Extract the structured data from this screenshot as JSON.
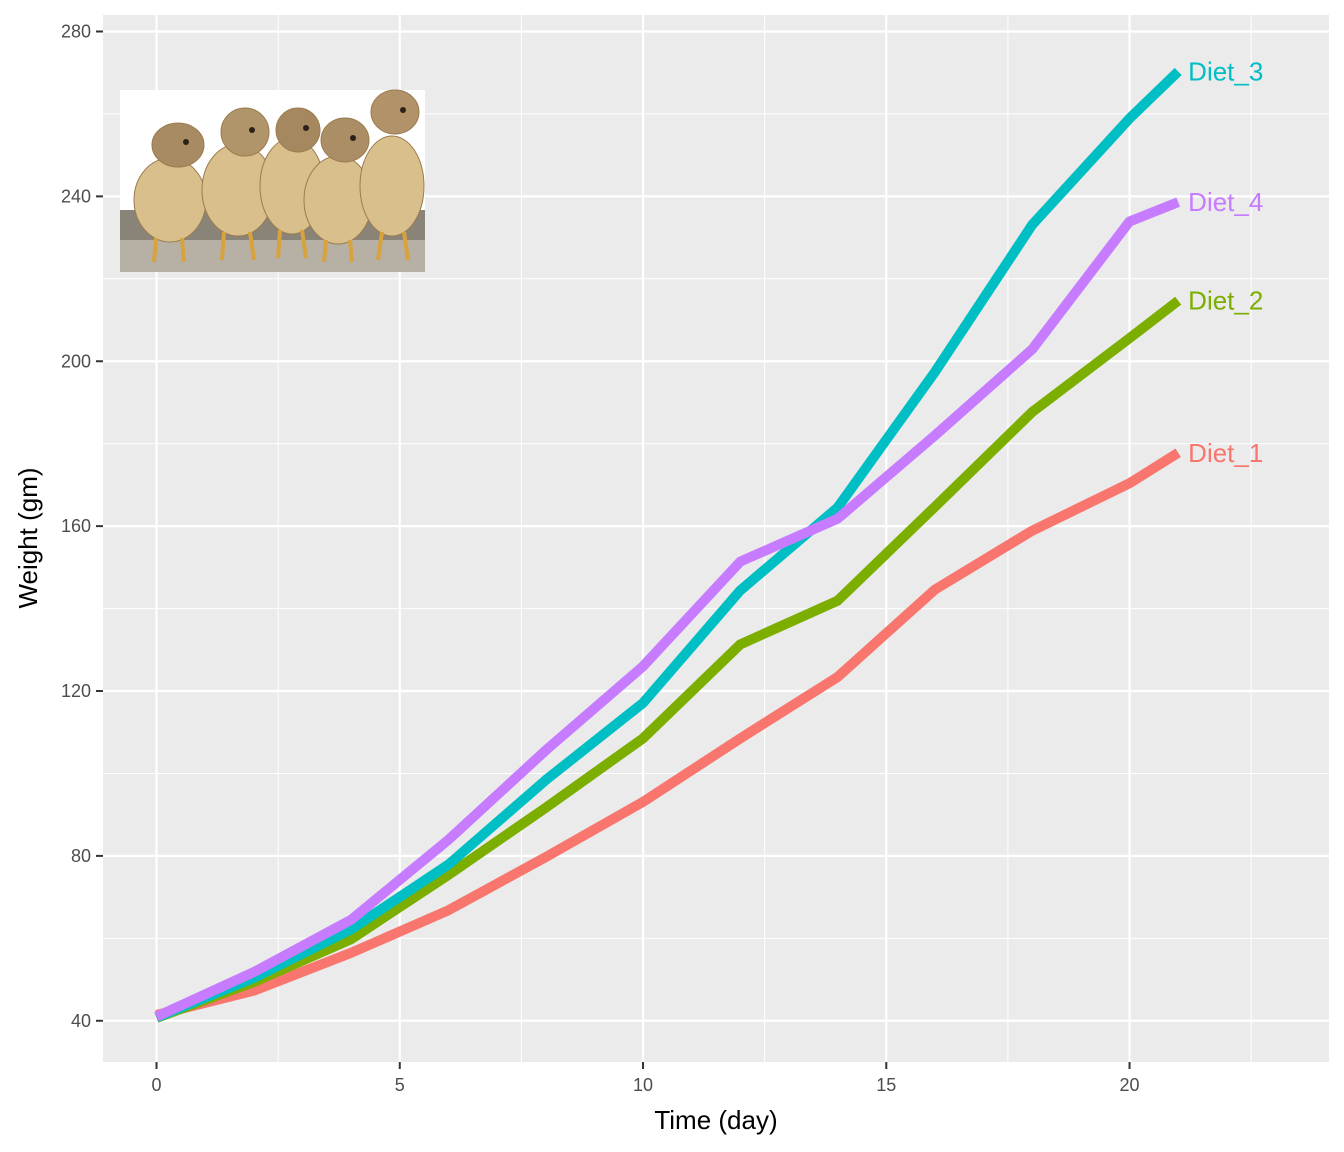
{
  "chart_data": {
    "type": "line",
    "xlabel": "Time (day)",
    "ylabel": "Weight (gm)",
    "xlim": [
      -1.1,
      24.1
    ],
    "ylim": [
      30,
      284
    ],
    "x_ticks": [
      0,
      5,
      10,
      15,
      20
    ],
    "y_ticks": [
      40,
      80,
      120,
      160,
      200,
      240,
      280
    ],
    "grid": true,
    "legend": "direct labels at line ends",
    "inset_image": "photo of five chicks",
    "x": [
      0,
      2,
      4,
      6,
      8,
      10,
      12,
      14,
      16,
      18,
      20,
      21
    ],
    "series": [
      {
        "name": "Diet_1",
        "color": "#F8766D",
        "values": [
          41.4,
          47.3,
          56.5,
          66.8,
          79.7,
          93.1,
          108.5,
          123.4,
          144.6,
          158.9,
          170.4,
          177.8
        ]
      },
      {
        "name": "Diet_2",
        "color": "#7CAE00",
        "values": [
          40.7,
          49.4,
          59.8,
          75.4,
          91.7,
          108.5,
          131.3,
          141.9,
          164.7,
          187.7,
          205.6,
          214.7
        ]
      },
      {
        "name": "Diet_3",
        "color": "#00BFC4",
        "values": [
          40.8,
          50.4,
          62.2,
          77.9,
          98.4,
          117.1,
          144.4,
          164.5,
          197.4,
          233.1,
          258.9,
          270.3
        ]
      },
      {
        "name": "Diet_4",
        "color": "#C77CFF",
        "values": [
          41.0,
          51.8,
          64.5,
          83.9,
          105.6,
          126.0,
          151.4,
          161.8,
          182.0,
          202.9,
          233.9,
          238.6
        ]
      }
    ]
  }
}
